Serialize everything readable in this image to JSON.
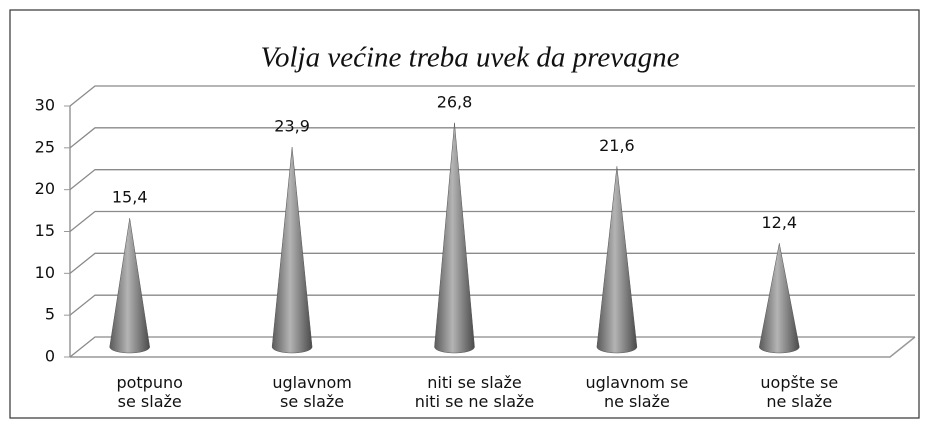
{
  "chart_data": {
    "type": "cone",
    "title": "Volja većine treba uvek da prevagne",
    "categories": [
      "potpuno\nse slaže",
      "uglavnom\nse slaže",
      "niti se slaže\nniti se ne slaže",
      "uglavnom se\nne slaže",
      "uopšte se\nne slaže"
    ],
    "values": [
      15.4,
      23.9,
      26.8,
      21.6,
      12.4
    ],
    "value_labels": [
      "15,4",
      "23,9",
      "26,8",
      "21,6",
      "12,4"
    ],
    "color": "#808080",
    "ylim": [
      0,
      30
    ],
    "yticks": [
      0,
      5,
      10,
      15,
      20,
      25,
      30
    ],
    "grid": true
  }
}
